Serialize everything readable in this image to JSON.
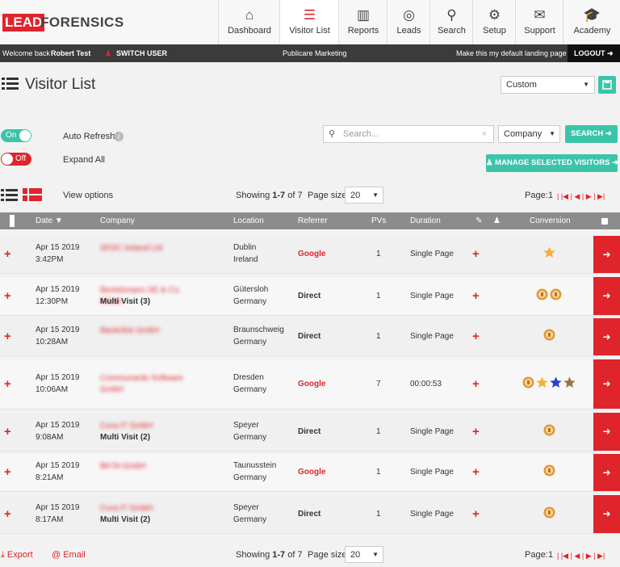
{
  "header": {
    "logo": {
      "lead": "LEAD",
      "forensics": "FORENSICS"
    },
    "nav": [
      "Dashboard",
      "Visitor List",
      "Reports",
      "Leads",
      "Search",
      "Setup",
      "Support",
      "Academy"
    ],
    "active_nav": 1
  },
  "userbar": {
    "welcome": "Welcome back",
    "user": "Robert Test",
    "switch_user": "SWITCH USER",
    "company": "Publicare Marketing",
    "default_page": "Make this my default landing page",
    "logout": "LOGOUT"
  },
  "page": {
    "title": "Visitor List",
    "date_range": "Custom"
  },
  "controls": {
    "on": "On",
    "auto_refresh": "Auto Refresh",
    "off": "Off",
    "expand_all": "Expand All",
    "search_placeholder": "Search...",
    "search_field": "Company",
    "search_button": "SEARCH",
    "manage_button": "MANAGE SELECTED VISITORS",
    "view_options": "View options"
  },
  "paging": {
    "showing": "Showing",
    "range": "1-7",
    "of": "of",
    "total": 7,
    "page_size_label": "Page size:",
    "page_size": 20,
    "page_label": "Page:",
    "page": 1
  },
  "table": {
    "columns": [
      "Date",
      "Company",
      "Location",
      "Referrer",
      "PVs",
      "Duration",
      "Conversion"
    ],
    "rows": [
      {
        "date": "Apr 15 2019",
        "time": "3:42PM",
        "company": "SFDC Ireland Ltd",
        "city": "Dublin",
        "country": "Ireland",
        "referrer": "Google",
        "pvs": 1,
        "duration": "Single Page",
        "conversion": [
          "star-gold"
        ]
      },
      {
        "date": "Apr 15 2019",
        "time": "12:30PM",
        "company": "Bertelsmann SE & Co. KGaA",
        "visits": "Multi Visit (3)",
        "city": "Gütersloh",
        "country": "Germany",
        "referrer": "Direct",
        "pvs": 1,
        "duration": "Single Page",
        "conversion": [
          "coin",
          "coin"
        ]
      },
      {
        "date": "Apr 15 2019",
        "time": "10:28AM",
        "company": "Backclick GmbH",
        "city": "Braunschweig",
        "country": "Germany",
        "referrer": "Direct",
        "pvs": 1,
        "duration": "Single Page",
        "conversion": [
          "coin"
        ]
      },
      {
        "date": "Apr 15 2019",
        "time": "10:06AM",
        "company": "Communardo Software GmbH",
        "city": "Dresden",
        "country": "Germany",
        "referrer": "Google",
        "pvs": 7,
        "duration": "00:00:53",
        "conversion": [
          "coin",
          "star-gold",
          "star-blue",
          "star-bronze"
        ]
      },
      {
        "date": "Apr 15 2019",
        "time": "9:08AM",
        "company": "Cura-IT GmbH",
        "visits": "Multi Visit (2)",
        "city": "Speyer",
        "country": "Germany",
        "referrer": "Direct",
        "pvs": 1,
        "duration": "Single Page",
        "conversion": [
          "coin"
        ]
      },
      {
        "date": "Apr 15 2019",
        "time": "8:21AM",
        "company": "BKTA GmbH",
        "city": "Taunusstein",
        "country": "Germany",
        "referrer": "Google",
        "pvs": 1,
        "duration": "Single Page",
        "conversion": [
          "coin"
        ]
      },
      {
        "date": "Apr 15 2019",
        "time": "8:17AM",
        "company": "Cura-IT GmbH",
        "visits": "Multi Visit (2)",
        "city": "Speyer",
        "country": "Germany",
        "referrer": "Direct",
        "pvs": 1,
        "duration": "Single Page",
        "conversion": [
          "coin"
        ]
      }
    ]
  },
  "footer": {
    "export": "Export",
    "email": "@ Email"
  }
}
